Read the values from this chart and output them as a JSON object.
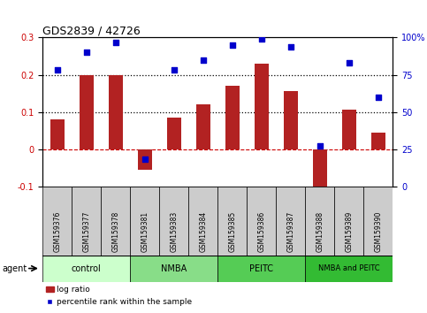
{
  "title": "GDS2839 / 42726",
  "samples": [
    "GSM159376",
    "GSM159377",
    "GSM159378",
    "GSM159381",
    "GSM159383",
    "GSM159384",
    "GSM159385",
    "GSM159386",
    "GSM159387",
    "GSM159388",
    "GSM159389",
    "GSM159390"
  ],
  "log_ratio": [
    0.08,
    0.2,
    0.2,
    -0.055,
    0.085,
    0.12,
    0.17,
    0.23,
    0.155,
    -0.13,
    0.105,
    0.045
  ],
  "percentile": [
    78,
    90,
    97,
    18,
    78,
    85,
    95,
    99,
    94,
    27,
    83,
    60
  ],
  "bar_color": "#b22222",
  "dot_color": "#0000cc",
  "ylim_left": [
    -0.1,
    0.3
  ],
  "ylim_right": [
    0,
    100
  ],
  "yticks_left": [
    -0.1,
    0.0,
    0.1,
    0.2,
    0.3
  ],
  "ytick_labels_left": [
    "-0.1",
    "0",
    "0.1",
    "0.2",
    "0.3"
  ],
  "yticks_right": [
    0,
    25,
    50,
    75,
    100
  ],
  "ytick_labels_right": [
    "0",
    "25",
    "50",
    "75",
    "100%"
  ],
  "groups": [
    {
      "label": "control",
      "start": 0,
      "end": 2,
      "color": "#ccffcc"
    },
    {
      "label": "NMBA",
      "start": 3,
      "end": 5,
      "color": "#88dd88"
    },
    {
      "label": "PEITC",
      "start": 6,
      "end": 8,
      "color": "#55cc55"
    },
    {
      "label": "NMBA and PEITC",
      "start": 9,
      "end": 11,
      "color": "#33bb33"
    }
  ],
  "agent_label": "agent",
  "legend_bar_label": "log ratio",
  "legend_dot_label": "percentile rank within the sample",
  "background_plot": "#ffffff",
  "tick_label_color_left": "#cc0000",
  "tick_label_color_right": "#0000cc",
  "sample_box_color": "#cccccc",
  "bar_width": 0.5
}
